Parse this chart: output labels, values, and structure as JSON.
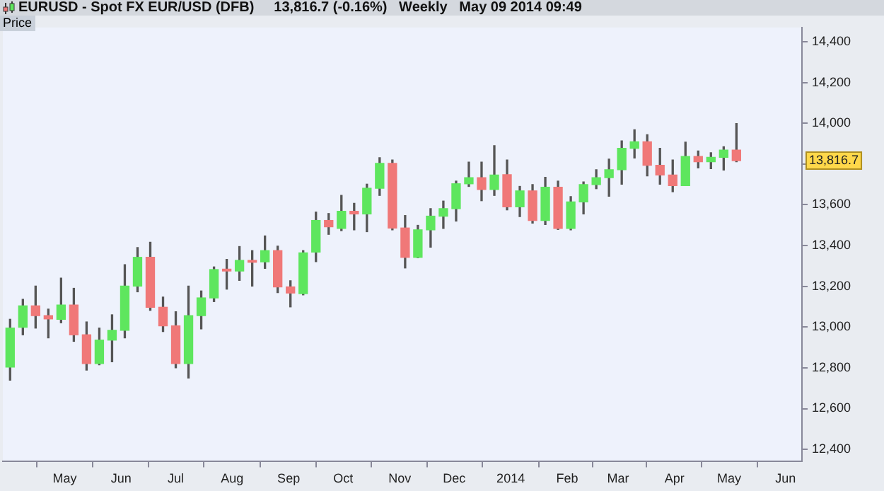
{
  "chart_data": {
    "type": "candlestick",
    "title": "EURUSD - Spot FX EUR/USD (DFB)",
    "subtitle": "13,816.7 (-0.16%)   Weekly   May 09 2014 09:49",
    "ylabel": "Price",
    "x": [
      "2013-04-01",
      "2013-04-08",
      "2013-04-15",
      "2013-04-22",
      "2013-04-29",
      "2013-05-06",
      "2013-05-13",
      "2013-05-20",
      "2013-05-27",
      "2013-06-03",
      "2013-06-10",
      "2013-06-17",
      "2013-06-24",
      "2013-07-01",
      "2013-07-08",
      "2013-07-15",
      "2013-07-22",
      "2013-07-29",
      "2013-08-05",
      "2013-08-12",
      "2013-08-19",
      "2013-08-26",
      "2013-09-02",
      "2013-09-09",
      "2013-09-16",
      "2013-09-23",
      "2013-09-30",
      "2013-10-07",
      "2013-10-14",
      "2013-10-21",
      "2013-10-28",
      "2013-11-04",
      "2013-11-11",
      "2013-11-18",
      "2013-11-25",
      "2013-12-02",
      "2013-12-09",
      "2013-12-16",
      "2013-12-23",
      "2013-12-30",
      "2014-01-06",
      "2014-01-13",
      "2014-01-20",
      "2014-01-27",
      "2014-02-03",
      "2014-02-10",
      "2014-02-17",
      "2014-02-24",
      "2014-03-03",
      "2014-03-10",
      "2014-03-17",
      "2014-03-24",
      "2014-03-31",
      "2014-04-07",
      "2014-04-14",
      "2014-04-21",
      "2014-04-28",
      "2014-05-05"
    ],
    "ohlc": [
      [
        12804,
        13038,
        12739,
        12995
      ],
      [
        12999,
        13136,
        12962,
        13104
      ],
      [
        13104,
        13201,
        12995,
        13056
      ],
      [
        13056,
        13088,
        12947,
        13040
      ],
      [
        13038,
        13240,
        13021,
        13108
      ],
      [
        13108,
        13190,
        12930,
        12962
      ],
      [
        12962,
        13025,
        12789,
        12821
      ],
      [
        12821,
        12995,
        12815,
        12936
      ],
      [
        12936,
        13060,
        12830,
        12984
      ],
      [
        12984,
        13306,
        12947,
        13201
      ],
      [
        13201,
        13390,
        13173,
        13342
      ],
      [
        13342,
        13416,
        13082,
        13097
      ],
      [
        13097,
        13147,
        12978,
        13006
      ],
      [
        13006,
        13075,
        12800,
        12821
      ],
      [
        12821,
        13201,
        12750,
        13056
      ],
      [
        13056,
        13177,
        12991,
        13143
      ],
      [
        13143,
        13295,
        13125,
        13282
      ],
      [
        13284,
        13332,
        13186,
        13275
      ],
      [
        13275,
        13395,
        13229,
        13327
      ],
      [
        13327,
        13375,
        13201,
        13318
      ],
      [
        13320,
        13447,
        13288,
        13375
      ],
      [
        13375,
        13397,
        13169,
        13197
      ],
      [
        13197,
        13227,
        13099,
        13167
      ],
      [
        13164,
        13375,
        13158,
        13364
      ],
      [
        13368,
        13564,
        13321,
        13523
      ],
      [
        13523,
        13557,
        13455,
        13492
      ],
      [
        13484,
        13646,
        13473,
        13568
      ],
      [
        13568,
        13607,
        13477,
        13555
      ],
      [
        13555,
        13701,
        13468,
        13681
      ],
      [
        13681,
        13831,
        13646,
        13803
      ],
      [
        13803,
        13820,
        13477,
        13486
      ],
      [
        13486,
        13547,
        13290,
        13342
      ],
      [
        13342,
        13499,
        13340,
        13477
      ],
      [
        13477,
        13581,
        13392,
        13544
      ],
      [
        13544,
        13618,
        13484,
        13581
      ],
      [
        13581,
        13716,
        13520,
        13703
      ],
      [
        13703,
        13809,
        13690,
        13733
      ],
      [
        13733,
        13809,
        13620,
        13675
      ],
      [
        13675,
        13890,
        13646,
        13746
      ],
      [
        13748,
        13820,
        13575,
        13590
      ],
      [
        13590,
        13690,
        13542,
        13668
      ],
      [
        13668,
        13699,
        13510,
        13523
      ],
      [
        13523,
        13735,
        13503,
        13686
      ],
      [
        13686,
        13716,
        13479,
        13484
      ],
      [
        13484,
        13640,
        13477,
        13614
      ],
      [
        13614,
        13712,
        13555,
        13699
      ],
      [
        13699,
        13772,
        13679,
        13733
      ],
      [
        13733,
        13824,
        13642,
        13772
      ],
      [
        13772,
        13913,
        13701,
        13877
      ],
      [
        13877,
        13968,
        13829,
        13909
      ],
      [
        13909,
        13944,
        13742,
        13794
      ],
      [
        13794,
        13877,
        13701,
        13746
      ],
      [
        13746,
        13820,
        13664,
        13694
      ],
      [
        13694,
        13907,
        13694,
        13837
      ],
      [
        13837,
        13864,
        13781,
        13811
      ],
      [
        13811,
        13855,
        13777,
        13833
      ],
      [
        13833,
        13885,
        13770,
        13868
      ],
      [
        13868,
        13998,
        13811,
        13816.7
      ]
    ],
    "colors": [
      "#5ee65e",
      "#5ee65e",
      "#f07878",
      "#f07878",
      "#5ee65e",
      "#f07878",
      "#f07878",
      "#5ee65e",
      "#5ee65e",
      "#5ee65e",
      "#5ee65e",
      "#f07878",
      "#f07878",
      "#f07878",
      "#5ee65e",
      "#5ee65e",
      "#5ee65e",
      "#f07878",
      "#5ee65e",
      "#f07878",
      "#5ee65e",
      "#f07878",
      "#f07878",
      "#5ee65e",
      "#5ee65e",
      "#f07878",
      "#5ee65e",
      "#f07878",
      "#5ee65e",
      "#5ee65e",
      "#f07878",
      "#f07878",
      "#5ee65e",
      "#5ee65e",
      "#5ee65e",
      "#5ee65e",
      "#5ee65e",
      "#f07878",
      "#5ee65e",
      "#f07878",
      "#5ee65e",
      "#f07878",
      "#5ee65e",
      "#f07878",
      "#5ee65e",
      "#5ee65e",
      "#5ee65e",
      "#5ee65e",
      "#5ee65e",
      "#5ee65e",
      "#f07878",
      "#f07878",
      "#f07878",
      "#5ee65e",
      "#f07878",
      "#5ee65e",
      "#5ee65e",
      "#f07878"
    ],
    "xlim": [
      "2013-03-28",
      "2014-06-10"
    ],
    "xticks": [
      {
        "value": "2013-05-01",
        "label": "May"
      },
      {
        "value": "2013-06-01",
        "label": "Jun"
      },
      {
        "value": "2013-07-01",
        "label": "Jul"
      },
      {
        "value": "2013-08-01",
        "label": "Aug"
      },
      {
        "value": "2013-09-01",
        "label": "Sep"
      },
      {
        "value": "2013-10-01",
        "label": "Oct"
      },
      {
        "value": "2013-11-01",
        "label": "Nov"
      },
      {
        "value": "2013-12-01",
        "label": "Dec"
      },
      {
        "value": "2014-01-01",
        "label": "2014"
      },
      {
        "value": "2014-02-01",
        "label": "Feb"
      },
      {
        "value": "2014-03-01",
        "label": "Mar"
      },
      {
        "value": "2014-04-01",
        "label": "Apr"
      },
      {
        "value": "2014-05-01",
        "label": "May"
      },
      {
        "value": "2014-06-01",
        "label": "Jun"
      }
    ],
    "ylim": [
      12340,
      14470
    ],
    "yticks": [
      {
        "value": 12400,
        "label": "12,400"
      },
      {
        "value": 12600,
        "label": "12,600"
      },
      {
        "value": 12800,
        "label": "12,800"
      },
      {
        "value": 13000,
        "label": "13,000"
      },
      {
        "value": 13200,
        "label": "13,200"
      },
      {
        "value": 13400,
        "label": "13,400"
      },
      {
        "value": 13600,
        "label": "13,600"
      },
      {
        "value": 13800,
        "label": null
      },
      {
        "value": 14000,
        "label": "14,000"
      },
      {
        "value": 14200,
        "label": "14,200"
      },
      {
        "value": 14400,
        "label": "14,400"
      }
    ],
    "annotations": [
      "13,816.7"
    ],
    "grid": false,
    "legend": false
  }
}
